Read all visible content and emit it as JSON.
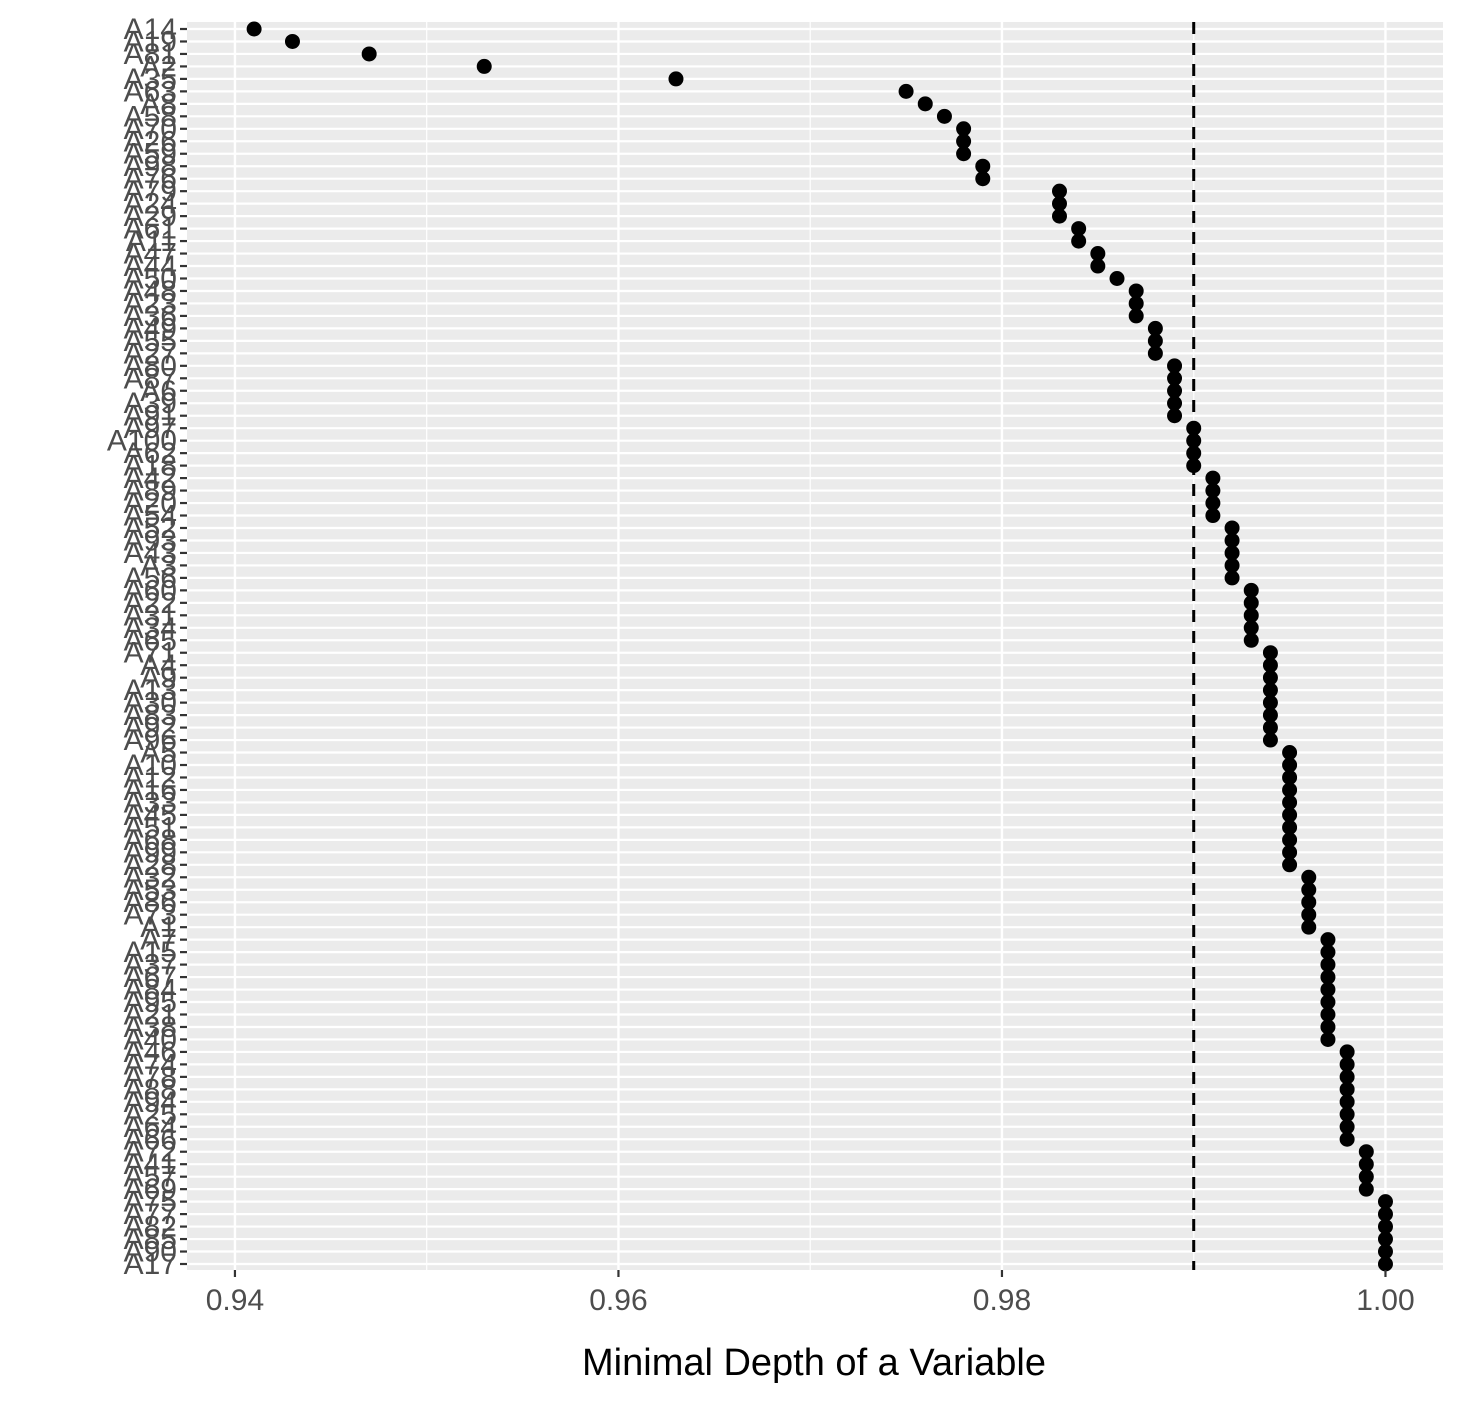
{
  "chart_data": {
    "type": "scatter",
    "xlabel": "Minimal Depth of a Variable",
    "ylabel": "",
    "xlim": [
      0.9375,
      1.003
    ],
    "x_ticks": [
      0.94,
      0.96,
      0.98,
      1.0
    ],
    "x_tick_labels": [
      "0.94",
      "0.96",
      "0.98",
      "1.00"
    ],
    "threshold_x": 0.99,
    "threshold_style": "dashed",
    "grid": true,
    "legend": "none",
    "categories": [
      "A14",
      "A19",
      "A81",
      "A2",
      "A35",
      "A63",
      "A8",
      "A58",
      "A70",
      "A26",
      "A59",
      "A98",
      "A76",
      "A79",
      "A24",
      "A29",
      "A61",
      "A11",
      "A47",
      "A44",
      "A50",
      "A48",
      "A23",
      "A36",
      "A49",
      "A55",
      "A27",
      "A80",
      "A87",
      "A6",
      "A39",
      "A91",
      "A97",
      "A100",
      "A62",
      "A18",
      "A42",
      "A89",
      "A20",
      "A54",
      "A52",
      "A93",
      "A43",
      "A3",
      "A56",
      "A60",
      "A22",
      "A31",
      "A34",
      "A65",
      "A71",
      "A4",
      "A9",
      "A13",
      "A30",
      "A83",
      "A92",
      "A96",
      "A5",
      "A10",
      "A12",
      "A16",
      "A33",
      "A45",
      "A51",
      "A68",
      "A99",
      "A28",
      "A32",
      "A53",
      "A86",
      "A73",
      "A1",
      "A7",
      "A15",
      "A37",
      "A67",
      "A84",
      "A95",
      "A21",
      "A38",
      "A40",
      "A46",
      "A74",
      "A78",
      "A88",
      "A94",
      "A25",
      "A64",
      "A66",
      "A72",
      "A41",
      "A57",
      "A69",
      "A75",
      "A77",
      "A82",
      "A85",
      "A90",
      "A17"
    ],
    "values": [
      0.941,
      0.943,
      0.947,
      0.953,
      0.963,
      0.975,
      0.976,
      0.977,
      0.978,
      0.978,
      0.978,
      0.979,
      0.979,
      0.983,
      0.983,
      0.983,
      0.984,
      0.984,
      0.985,
      0.985,
      0.986,
      0.987,
      0.987,
      0.987,
      0.988,
      0.988,
      0.988,
      0.989,
      0.989,
      0.989,
      0.989,
      0.989,
      0.99,
      0.99,
      0.99,
      0.99,
      0.991,
      0.991,
      0.991,
      0.991,
      0.992,
      0.992,
      0.992,
      0.992,
      0.992,
      0.993,
      0.993,
      0.993,
      0.993,
      0.993,
      0.994,
      0.994,
      0.994,
      0.994,
      0.994,
      0.994,
      0.994,
      0.994,
      0.995,
      0.995,
      0.995,
      0.995,
      0.995,
      0.995,
      0.995,
      0.995,
      0.995,
      0.995,
      0.996,
      0.996,
      0.996,
      0.996,
      0.996,
      0.997,
      0.997,
      0.997,
      0.997,
      0.997,
      0.997,
      0.997,
      0.997,
      0.997,
      0.998,
      0.998,
      0.998,
      0.998,
      0.998,
      0.998,
      0.998,
      0.998,
      0.999,
      0.999,
      0.999,
      0.999,
      1.0,
      1.0,
      1.0,
      1.0,
      1.0,
      1.0
    ]
  }
}
